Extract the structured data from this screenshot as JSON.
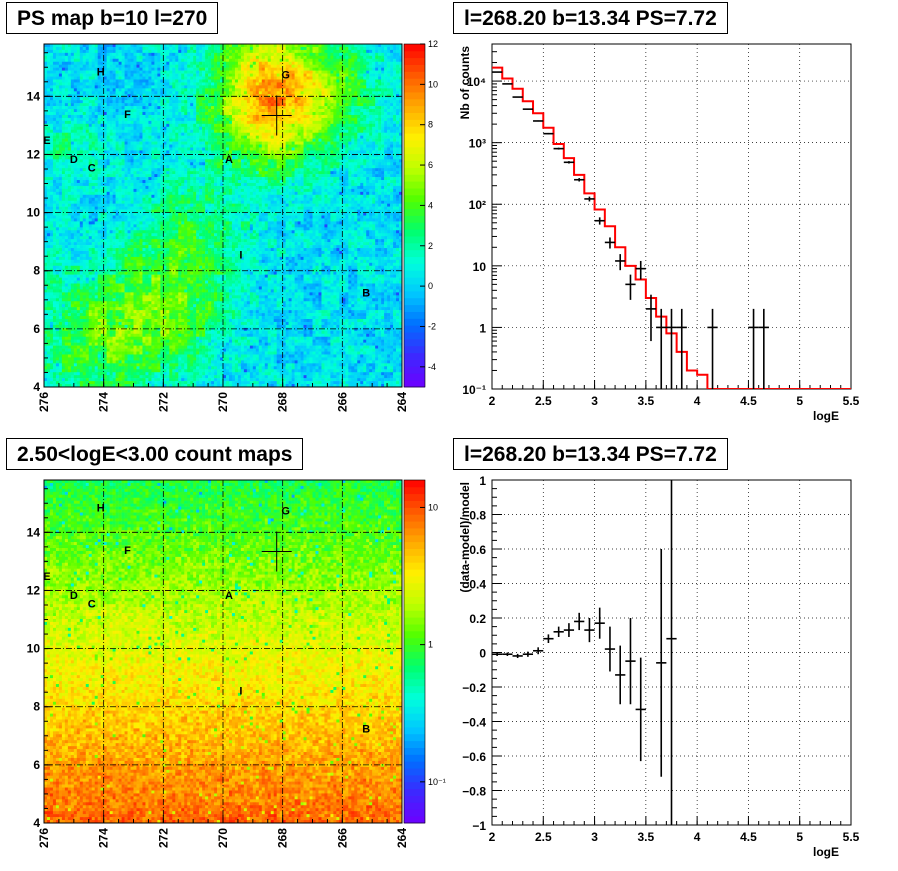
{
  "panels": {
    "ps_map": {
      "title": "PS map b=10 l=270",
      "x_ticks": [
        "276",
        "274",
        "272",
        "270",
        "268",
        "266",
        "264"
      ],
      "y_ticks": [
        "4",
        "6",
        "8",
        "10",
        "12",
        "14"
      ],
      "colorbar_ticks": [
        "12",
        "10",
        "8",
        "6",
        "4",
        "2",
        "0",
        "-2",
        "-4"
      ],
      "colorbar_range": [
        -5,
        12
      ],
      "marker": {
        "l": 268.2,
        "b": 13.34
      },
      "labels": [
        {
          "text": "H",
          "l": 274.1,
          "b": 14.85
        },
        {
          "text": "G",
          "l": 267.9,
          "b": 14.75
        },
        {
          "text": "F",
          "l": 273.2,
          "b": 13.4
        },
        {
          "text": "E",
          "l": 275.9,
          "b": 12.5
        },
        {
          "text": "D",
          "l": 275.0,
          "b": 11.85
        },
        {
          "text": "C",
          "l": 274.4,
          "b": 11.55
        },
        {
          "text": "A",
          "l": 269.8,
          "b": 11.85
        },
        {
          "text": "I",
          "l": 269.4,
          "b": 8.55
        },
        {
          "text": "B",
          "l": 265.2,
          "b": 7.25
        }
      ]
    },
    "count_map": {
      "title": "2.50<logE<3.00 count maps",
      "x_ticks": [
        "276",
        "274",
        "272",
        "270",
        "268",
        "266",
        "264"
      ],
      "y_ticks": [
        "4",
        "6",
        "8",
        "10",
        "12",
        "14"
      ],
      "colorbar_ticks": [
        {
          "label": "10",
          "value": 10
        },
        {
          "label": "1",
          "value": 1
        },
        {
          "label": "10⁻¹",
          "value": 0.1
        }
      ],
      "marker": {
        "l": 268.2,
        "b": 13.34
      },
      "labels": [
        {
          "text": "H",
          "l": 274.1,
          "b": 14.85
        },
        {
          "text": "G",
          "l": 267.9,
          "b": 14.75
        },
        {
          "text": "F",
          "l": 273.2,
          "b": 13.4
        },
        {
          "text": "E",
          "l": 275.9,
          "b": 12.5
        },
        {
          "text": "D",
          "l": 275.0,
          "b": 11.85
        },
        {
          "text": "C",
          "l": 274.4,
          "b": 11.55
        },
        {
          "text": "A",
          "l": 269.8,
          "b": 11.85
        },
        {
          "text": "I",
          "l": 269.4,
          "b": 8.55
        },
        {
          "text": "B",
          "l": 265.2,
          "b": 7.25
        }
      ]
    },
    "spectrum": {
      "title": "l=268.20 b=13.34 PS=7.72",
      "ylabel": "Nb of counts",
      "xlabel": "logE",
      "x_ticks": [
        "2",
        "2.5",
        "3",
        "3.5",
        "4",
        "4.5",
        "5",
        "5.5"
      ],
      "y_ticks": [
        {
          "label": "10⁴",
          "value": 10000
        },
        {
          "label": "10³",
          "value": 1000
        },
        {
          "label": "10²",
          "value": 100
        },
        {
          "label": "10",
          "value": 10
        },
        {
          "label": "1",
          "value": 1
        },
        {
          "label": "10⁻¹",
          "value": 0.1
        }
      ]
    },
    "residual": {
      "title": "l=268.20 b=13.34 PS=7.72",
      "ylabel": "(data-model)/model",
      "xlabel": "logE",
      "x_ticks": [
        "2",
        "2.5",
        "3",
        "3.5",
        "4",
        "4.5",
        "5",
        "5.5"
      ],
      "y_ticks": [
        "1",
        "0.8",
        "0.6",
        "0.4",
        "0.2",
        "0",
        "−0.2",
        "−0.4",
        "−0.6",
        "−0.8",
        "−1"
      ]
    }
  },
  "chart_data": [
    {
      "type": "heatmap",
      "title": "PS map b=10 l=270",
      "xlim": [
        276,
        264
      ],
      "ylim": [
        4,
        15.8
      ],
      "zlim": [
        -5,
        12
      ],
      "colorbar_ticks": [
        12,
        10,
        8,
        6,
        4,
        2,
        0,
        -2,
        -4
      ],
      "grid": true,
      "marker": {
        "l": 268.2,
        "b": 13.34
      }
    },
    {
      "type": "heatmap",
      "title": "2.50<logE<3.00 count maps",
      "xlim": [
        276,
        264
      ],
      "ylim": [
        4,
        15.8
      ],
      "zscale": "log",
      "colorbar_ticks": [
        10,
        1,
        0.1
      ],
      "grid": true,
      "marker": {
        "l": 268.2,
        "b": 13.34
      }
    },
    {
      "type": "line",
      "title": "l=268.20 b=13.34 PS=7.72",
      "xlabel": "logE",
      "ylabel": "Nb of counts",
      "xlim": [
        2,
        5.5
      ],
      "ylim": [
        0.1,
        40000
      ],
      "yscale": "log",
      "grid": true,
      "series": [
        {
          "name": "",
          "style": "data",
          "color": "#000000",
          "bin_width": 0.1,
          "x": [
            2.05,
            2.15,
            2.25,
            2.35,
            2.45,
            2.55,
            2.65,
            2.75,
            2.85,
            2.95,
            3.05,
            3.15,
            3.25,
            3.35,
            3.45,
            3.55,
            3.65,
            3.75,
            3.85,
            4.15,
            4.55,
            4.65
          ],
          "y": [
            14000,
            9000,
            5500,
            3500,
            2250,
            1400,
            800,
            480,
            250,
            122,
            54,
            24,
            12,
            5,
            9,
            2,
            1,
            1,
            1,
            1,
            1,
            1
          ],
          "err_low": [
            118,
            95,
            74,
            59,
            47,
            37,
            28,
            22,
            16,
            11,
            7.3,
            4.9,
            3.5,
            2.2,
            3.0,
            1.4,
            1,
            1,
            1,
            1,
            1,
            1
          ],
          "err_high": [
            118,
            95,
            74,
            59,
            47,
            37,
            28,
            22,
            16,
            11,
            7.3,
            4.9,
            3.5,
            2.2,
            3.0,
            1.4,
            1,
            1,
            1,
            1,
            1,
            1
          ]
        },
        {
          "name": "",
          "style": "step",
          "color": "#ff0000",
          "bin_edges": [
            2.0,
            2.1,
            2.2,
            2.3,
            2.4,
            2.5,
            2.6,
            2.7,
            2.8,
            2.9,
            3.0,
            3.1,
            3.2,
            3.3,
            3.4,
            3.5,
            3.6,
            3.7,
            3.8,
            3.9,
            4.0,
            4.1,
            4.2,
            5.5
          ],
          "values": [
            16500,
            11000,
            7500,
            4700,
            3000,
            1750,
            950,
            560,
            300,
            150,
            82,
            44,
            20,
            10,
            6,
            3,
            1.5,
            0.8,
            0.4,
            0.2,
            0.17,
            0.1,
            0.1
          ]
        }
      ]
    },
    {
      "type": "scatter",
      "title": "l=268.20 b=13.34 PS=7.72",
      "xlabel": "logE",
      "ylabel": "(data-model)/model",
      "xlim": [
        2,
        5.5
      ],
      "ylim": [
        -1,
        1
      ],
      "grid": true,
      "series": [
        {
          "name": "",
          "color": "#000000",
          "bin_width": 0.1,
          "x": [
            2.05,
            2.15,
            2.25,
            2.35,
            2.45,
            2.55,
            2.65,
            2.75,
            2.85,
            2.95,
            3.05,
            3.15,
            3.25,
            3.35,
            3.45,
            3.65,
            3.75
          ],
          "y": [
            -0.01,
            -0.01,
            -0.02,
            -0.01,
            0.01,
            0.08,
            0.12,
            0.13,
            0.18,
            0.13,
            0.17,
            0.02,
            -0.13,
            -0.05,
            -0.33,
            -0.06,
            0.08
          ],
          "err": [
            0.01,
            0.01,
            0.012,
            0.015,
            0.02,
            0.025,
            0.03,
            0.04,
            0.05,
            0.07,
            0.09,
            0.13,
            0.17,
            0.25,
            0.3,
            0.66,
            1.1
          ]
        }
      ]
    }
  ]
}
